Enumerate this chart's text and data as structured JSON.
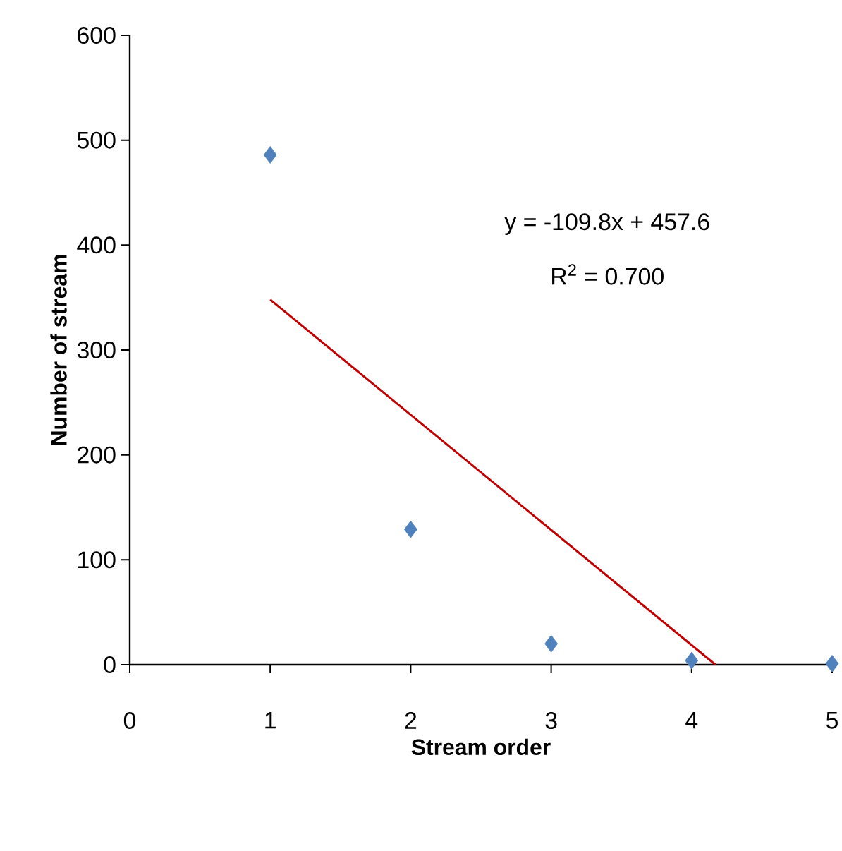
{
  "chart_data": {
    "type": "scatter",
    "xlabel": "Stream order",
    "ylabel": "Number of stream",
    "xlim": [
      0,
      5
    ],
    "xticks": [
      0,
      1,
      2,
      3,
      4,
      5
    ],
    "ylim": [
      0,
      600
    ],
    "yticks": [
      0,
      100,
      200,
      300,
      400,
      500,
      600
    ],
    "marker": "diamond",
    "grid": false,
    "series": [
      {
        "color": "#4f81bd",
        "x": [
          1,
          2,
          3,
          4,
          5
        ],
        "values": [
          486,
          129,
          20,
          4,
          1
        ]
      },
      {
        "type": "line",
        "color": "#c00000",
        "marker": "none",
        "line_style": "solid",
        "x": [
          1,
          4.17
        ],
        "values": [
          348,
          0
        ]
      }
    ],
    "annotations": [
      "y = -109.8x + 457.6",
      "R$^{2}$ = 0.700"
    ]
  }
}
